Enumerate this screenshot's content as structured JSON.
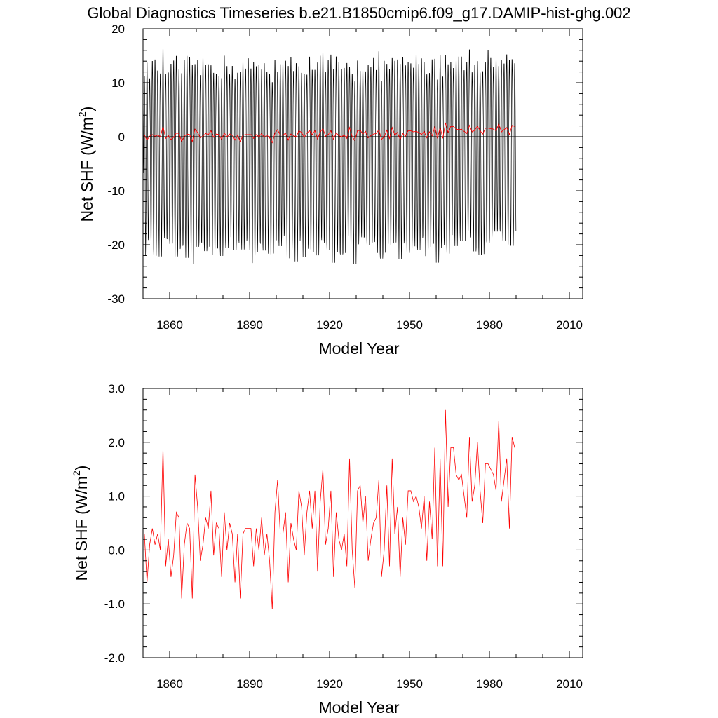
{
  "title": "Global Diagnostics Timeseries b.e21.B1850cmip6.f09_g17.DAMIP-hist-ghg.002",
  "colors": {
    "monthly": "#000000",
    "annual": "#ff0000",
    "axis": "#000000",
    "zero_line": "#000000"
  },
  "chart_data": [
    {
      "type": "line",
      "title": "Global Diagnostics Timeseries b.e21.B1850cmip6.f09_g17.DAMIP-hist-ghg.002",
      "xlabel": "Model Year",
      "ylabel_prefix": "Net SHF (W/m",
      "ylabel_sup": "2",
      "ylabel_suffix": ")",
      "xlim": [
        1850,
        2015
      ],
      "ylim": [
        -30,
        20
      ],
      "xticks": [
        "1860",
        "1890",
        "1920",
        "1950",
        "1980",
        "2010"
      ],
      "yticks": [
        "20",
        "10",
        "0",
        "-10",
        "-20",
        "-30"
      ],
      "grid": false,
      "reference_line": 0,
      "series": [
        {
          "id": "monthly",
          "color": "#000000",
          "monthly_cycle": {
            "max_approx": [
              11,
              15
            ],
            "min_approx": [
              -19,
              -24
            ]
          }
        },
        {
          "id": "annual",
          "color": "#ff0000",
          "x_start": 1850,
          "x_step": 1,
          "values": [
            0.3,
            -0.6,
            0.1,
            0.4,
            0.1,
            0.3,
            0.0,
            1.9,
            -0.3,
            0.2,
            -0.5,
            -0.1,
            0.7,
            0.6,
            -0.9,
            0.1,
            0.5,
            0.4,
            -0.9,
            1.4,
            0.8,
            -0.2,
            0.1,
            0.6,
            0.4,
            1.1,
            -0.1,
            0.5,
            0.4,
            -0.5,
            0.7,
            0.0,
            0.5,
            0.3,
            -0.6,
            0.3,
            -0.9,
            0.3,
            0.4,
            0.4,
            0.4,
            -0.3,
            0.4,
            0.0,
            0.6,
            -0.1,
            0.3,
            -0.2,
            -1.1,
            0.7,
            1.3,
            0.3,
            0.3,
            0.7,
            -0.6,
            0.5,
            0.2,
            0.0,
            1.1,
            0.8,
            -0.1,
            0.7,
            1.1,
            0.4,
            1.1,
            -0.4,
            0.9,
            1.5,
            0.1,
            0.4,
            1.1,
            -0.5,
            0.7,
            0.2,
            0.0,
            0.3,
            -0.3,
            1.7,
            0.0,
            -0.7,
            1.1,
            1.2,
            0.5,
            1.0,
            -0.2,
            0.2,
            0.5,
            0.6,
            1.3,
            -0.5,
            0.0,
            1.2,
            -0.3,
            1.7,
            0.3,
            0.8,
            -0.5,
            0.6,
            0.1,
            1.1,
            1.1,
            0.9,
            1.0,
            0.8,
            0.4,
            1.0,
            -0.2,
            0.9,
            0.2,
            1.9,
            -0.3,
            1.7,
            -0.3,
            2.6,
            0.8,
            1.9,
            1.9,
            1.4,
            1.3,
            1.4,
            1.0,
            0.6,
            2.1,
            0.9,
            1.2,
            2.0,
            1.1,
            0.5,
            1.6,
            1.6,
            1.5,
            1.4,
            1.1,
            2.4,
            0.9,
            1.3,
            1.7,
            0.4,
            2.1,
            1.9
          ]
        }
      ]
    },
    {
      "type": "line",
      "xlabel": "Model Year",
      "ylabel_prefix": "Net SHF (W/m",
      "ylabel_sup": "2",
      "ylabel_suffix": ")",
      "xlim": [
        1850,
        2015
      ],
      "ylim": [
        -2,
        3
      ],
      "xticks": [
        "1860",
        "1890",
        "1920",
        "1950",
        "1980",
        "2010"
      ],
      "yticks": [
        "3.0",
        "2.0",
        "1.0",
        "0.0",
        "-1.0",
        "-2.0"
      ],
      "grid": false,
      "reference_line": 0,
      "series": [
        {
          "id": "annual",
          "color": "#ff0000",
          "x_start": 1850,
          "x_step": 1,
          "values": [
            0.3,
            -0.6,
            0.1,
            0.4,
            0.1,
            0.3,
            0.0,
            1.9,
            -0.3,
            0.2,
            -0.5,
            -0.1,
            0.7,
            0.6,
            -0.9,
            0.1,
            0.5,
            0.4,
            -0.9,
            1.4,
            0.8,
            -0.2,
            0.1,
            0.6,
            0.4,
            1.1,
            -0.1,
            0.5,
            0.4,
            -0.5,
            0.7,
            0.0,
            0.5,
            0.3,
            -0.6,
            0.3,
            -0.9,
            0.3,
            0.4,
            0.4,
            0.4,
            -0.3,
            0.4,
            0.0,
            0.6,
            -0.1,
            0.3,
            -0.2,
            -1.1,
            0.7,
            1.3,
            0.3,
            0.3,
            0.7,
            -0.6,
            0.5,
            0.2,
            0.0,
            1.1,
            0.8,
            -0.1,
            0.7,
            1.1,
            0.4,
            1.1,
            -0.4,
            0.9,
            1.5,
            0.1,
            0.4,
            1.1,
            -0.5,
            0.7,
            0.2,
            0.0,
            0.3,
            -0.3,
            1.7,
            0.0,
            -0.7,
            1.1,
            1.2,
            0.5,
            1.0,
            -0.2,
            0.2,
            0.5,
            0.6,
            1.3,
            -0.5,
            0.0,
            1.2,
            -0.3,
            1.7,
            0.3,
            0.8,
            -0.5,
            0.6,
            0.1,
            1.1,
            1.1,
            0.9,
            1.0,
            0.8,
            0.4,
            1.0,
            -0.2,
            0.9,
            0.2,
            1.9,
            -0.3,
            1.7,
            -0.3,
            2.6,
            0.8,
            1.9,
            1.9,
            1.4,
            1.3,
            1.4,
            1.0,
            0.6,
            2.1,
            0.9,
            1.2,
            2.0,
            1.1,
            0.5,
            1.6,
            1.6,
            1.5,
            1.4,
            1.1,
            2.4,
            0.9,
            1.3,
            1.7,
            0.4,
            2.1,
            1.9
          ]
        }
      ]
    }
  ]
}
